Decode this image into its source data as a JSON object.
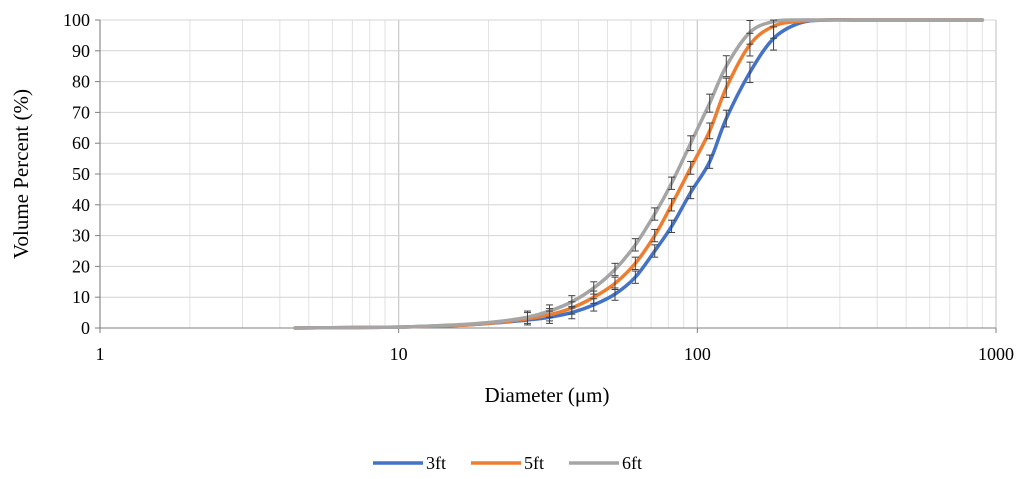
{
  "chart_data": {
    "type": "line",
    "xlabel": "Diameter (μm)",
    "ylabel": "Volume Percent (%)",
    "x_scale": "log",
    "xlim": [
      1,
      1000
    ],
    "ylim": [
      0,
      100
    ],
    "x_ticks": [
      1,
      10,
      100,
      1000
    ],
    "x_tick_labels": [
      "1",
      "10",
      "100",
      "1000"
    ],
    "y_ticks": [
      0,
      10,
      20,
      30,
      40,
      50,
      60,
      70,
      80,
      90,
      100
    ],
    "y_tick_labels": [
      "0",
      "10",
      "20",
      "30",
      "40",
      "50",
      "60",
      "70",
      "80",
      "90",
      "100"
    ],
    "grid": true,
    "legend_position": "bottom-center",
    "series": [
      {
        "name": "3ft",
        "color": "#4472C4",
        "x": [
          4.5,
          6,
          8,
          10,
          13,
          17,
          22,
          27,
          32,
          38,
          45,
          53,
          62,
          72,
          82,
          95,
          110,
          125,
          150,
          180,
          220,
          270,
          350,
          500,
          700,
          900
        ],
        "y": [
          0,
          0.1,
          0.2,
          0.3,
          0.6,
          1,
          1.8,
          2.6,
          3.5,
          5,
          7.5,
          11,
          16.5,
          25,
          33,
          44,
          54,
          68,
          83,
          94,
          99,
          100,
          100,
          100,
          100,
          100
        ]
      },
      {
        "name": "5ft",
        "color": "#ED7D31",
        "x": [
          4.5,
          6,
          8,
          10,
          13,
          17,
          22,
          27,
          32,
          38,
          45,
          53,
          62,
          72,
          82,
          95,
          110,
          125,
          150,
          180,
          220,
          270,
          350,
          500,
          700,
          900
        ],
        "y": [
          0,
          0.1,
          0.2,
          0.3,
          0.6,
          1,
          1.9,
          3,
          4.3,
          6.5,
          10,
          14.5,
          21,
          30,
          40,
          52,
          64,
          78,
          92,
          98,
          99.6,
          100,
          100,
          100,
          100,
          100
        ]
      },
      {
        "name": "6ft",
        "color": "#A5A5A5",
        "x": [
          4.5,
          6,
          8,
          10,
          13,
          17,
          22,
          27,
          32,
          38,
          45,
          53,
          62,
          72,
          82,
          95,
          110,
          125,
          150,
          180,
          220,
          270,
          350,
          500,
          700,
          900
        ],
        "y": [
          0,
          0.1,
          0.2,
          0.3,
          0.7,
          1.2,
          2.2,
          3.5,
          5.5,
          8.5,
          13,
          19,
          27,
          37,
          47,
          60,
          73,
          85,
          96,
          99.5,
          100,
          100,
          100,
          100,
          100,
          100
        ]
      }
    ]
  }
}
